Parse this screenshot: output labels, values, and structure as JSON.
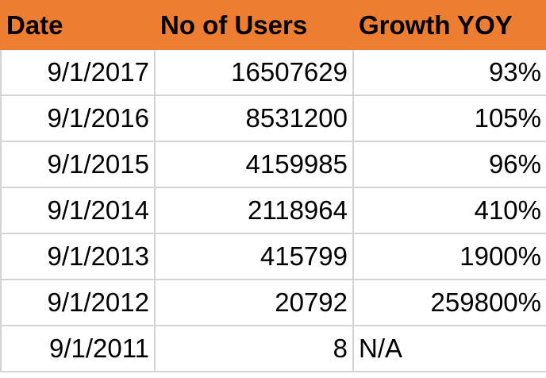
{
  "table": {
    "header": [
      "Date",
      "No of Users",
      "Growth YOY"
    ],
    "rows": [
      [
        "9/1/2017",
        "16507629",
        "93%"
      ],
      [
        "9/1/2016",
        "8531200",
        "105%"
      ],
      [
        "9/1/2015",
        "4159985",
        "96%"
      ],
      [
        "9/1/2014",
        "2118964",
        "410%"
      ],
      [
        "9/1/2013",
        "415799",
        "1900%"
      ],
      [
        "9/1/2012",
        "20792",
        "259800%"
      ],
      [
        "9/1/2011",
        "8",
        "N/A"
      ]
    ]
  }
}
